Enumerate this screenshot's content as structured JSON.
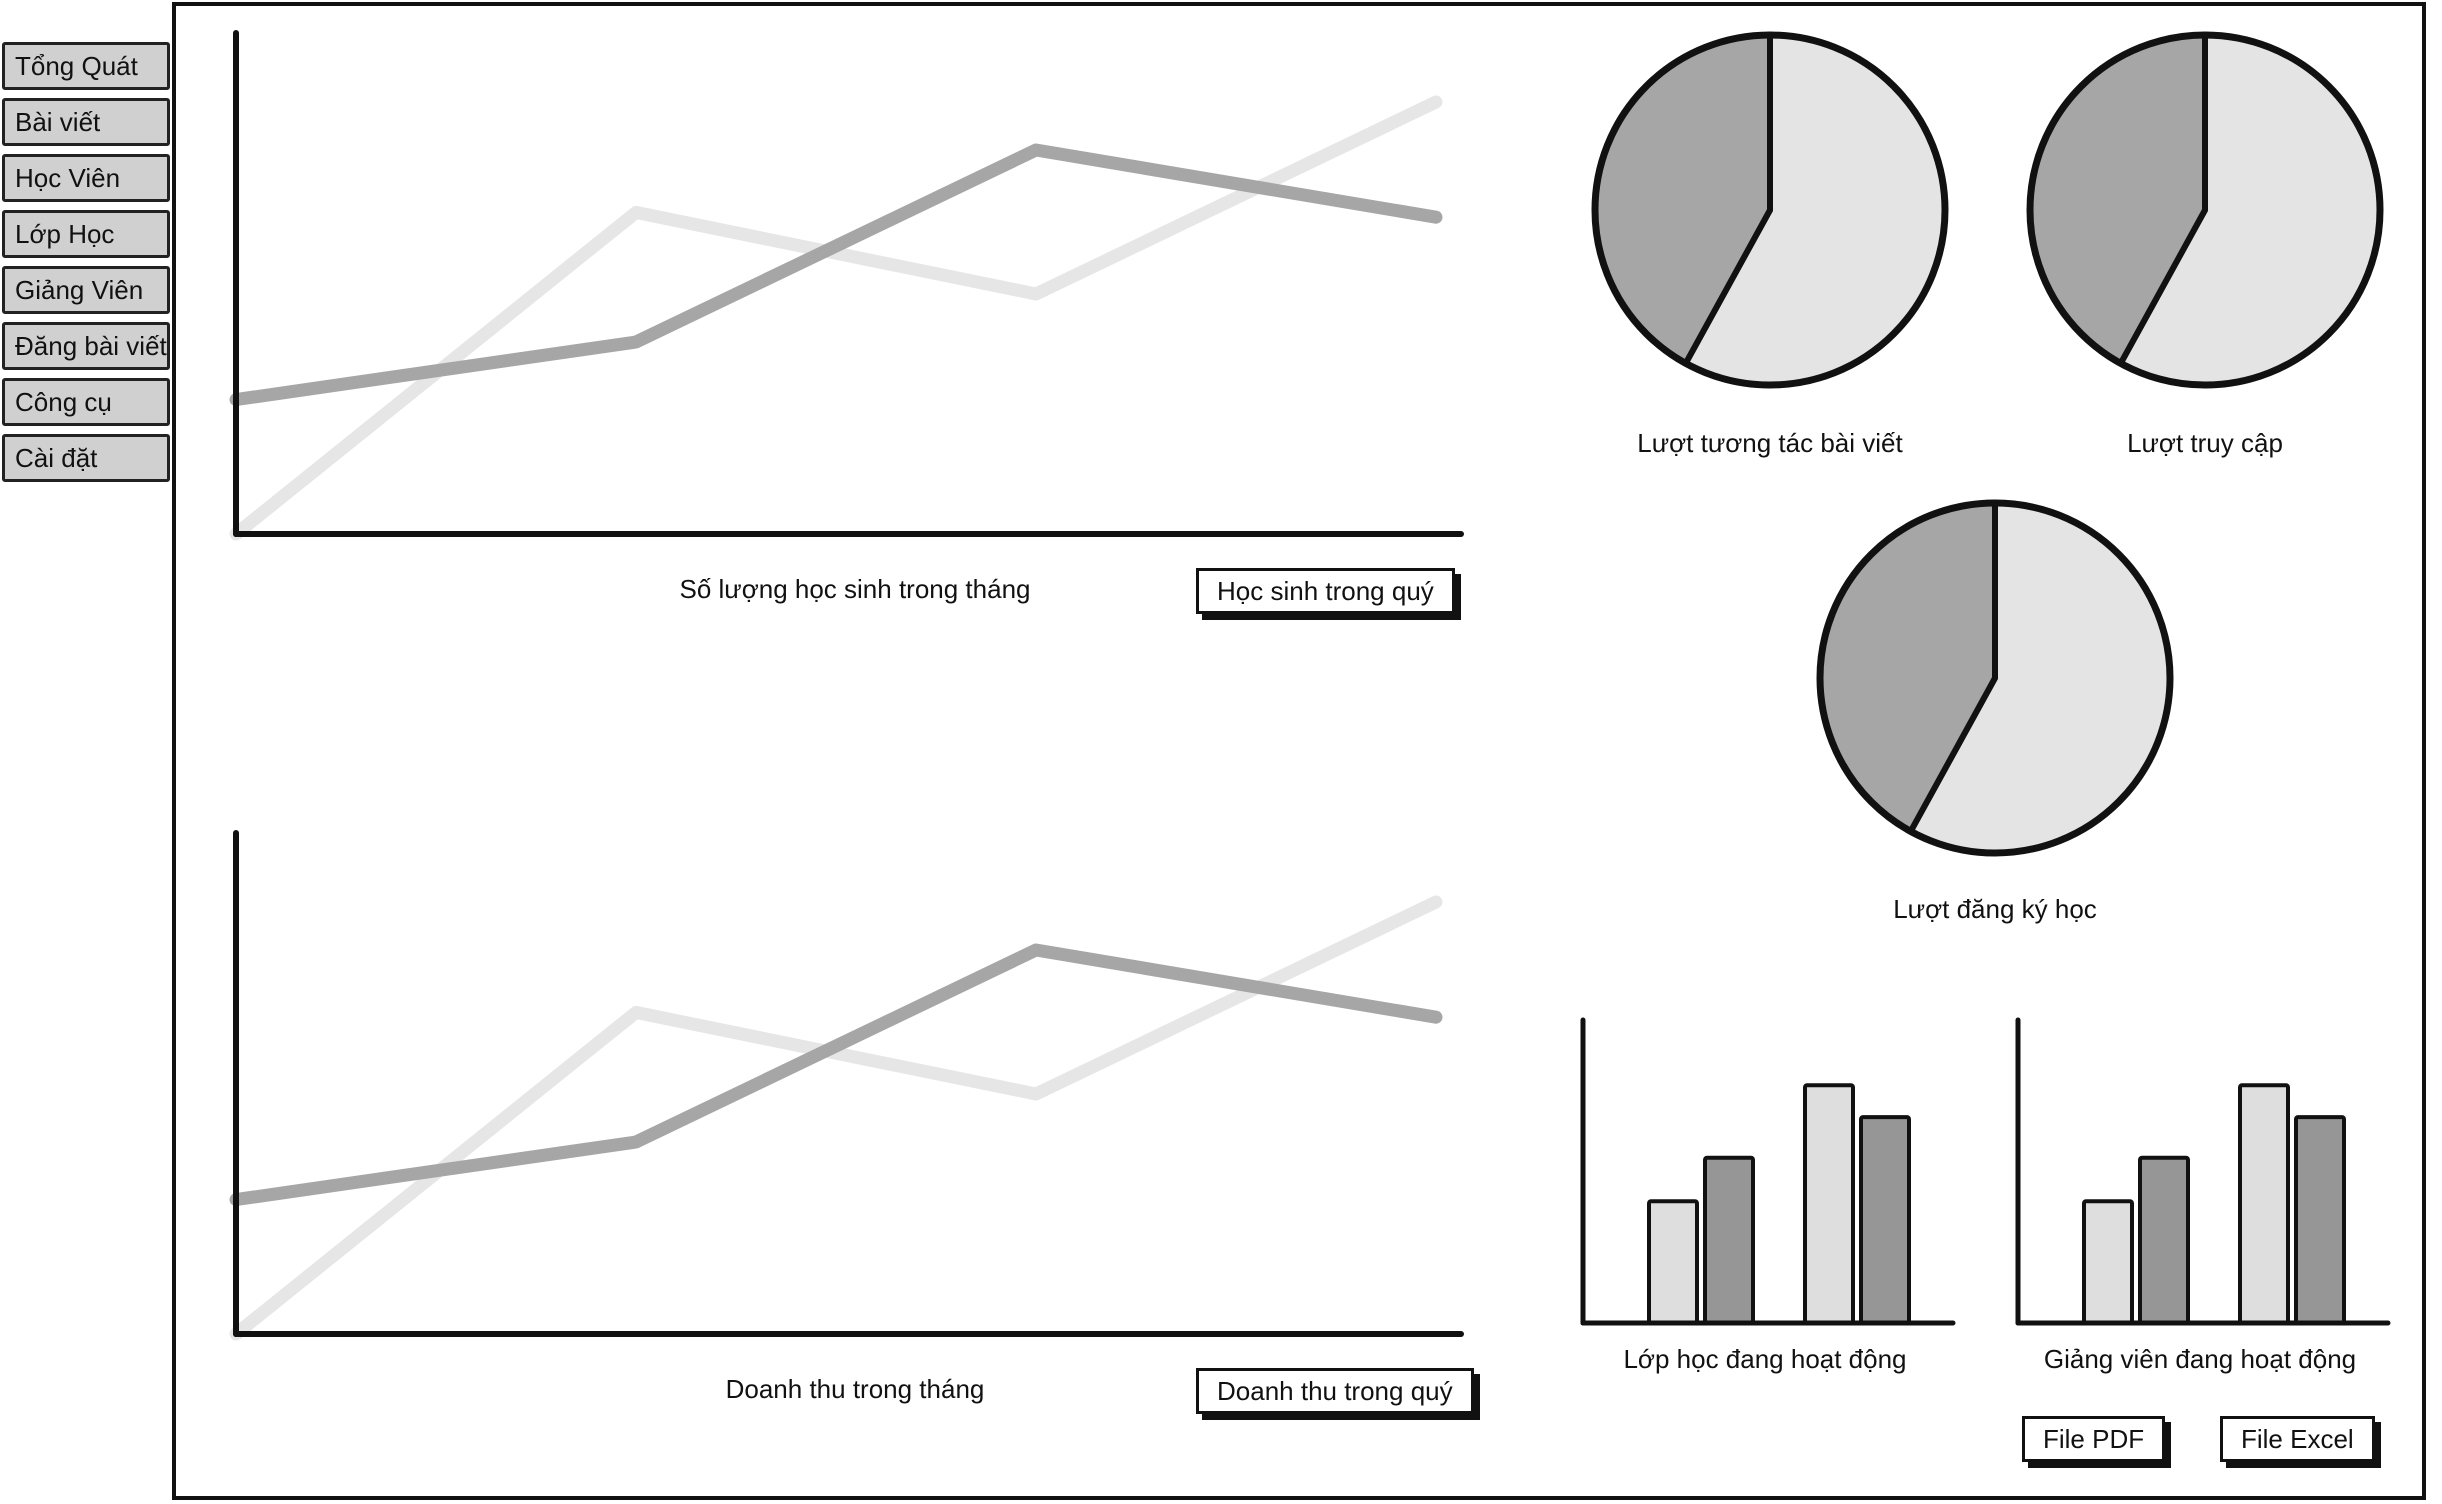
{
  "sidebar": {
    "items": [
      {
        "label": "Tổng Quát"
      },
      {
        "label": "Bài viết"
      },
      {
        "label": "Học Viên"
      },
      {
        "label": "Lớp Học"
      },
      {
        "label": "Giảng Viên"
      },
      {
        "label": "Đăng bài viết"
      },
      {
        "label": "Công cụ"
      },
      {
        "label": "Cài đặt"
      }
    ]
  },
  "colors": {
    "series_light": "#e6e6e6",
    "series_dark": "#a6a6a6",
    "bar_light": "#dedede",
    "bar_dark": "#969696",
    "pie_light": "#e4e4e4",
    "pie_dark": "#a6a6a6",
    "sidebar_tab": "#d0d0d0"
  },
  "students_chart": {
    "caption": "Số lượng học sinh trong tháng",
    "button_label": "Học sinh trong quý"
  },
  "revenue_chart": {
    "caption": "Doanh thu trong tháng",
    "button_label": "Doanh thu trong quý"
  },
  "pies": {
    "post_interactions": {
      "caption": "Lượt tương tác bài viết"
    },
    "visits": {
      "caption": "Lượt truy cập"
    },
    "registrations": {
      "caption": "Lượt đăng ký học"
    }
  },
  "bars": {
    "active_classes": {
      "caption": "Lớp học đang hoạt động"
    },
    "active_teachers": {
      "caption": "Giảng viên đang hoạt động"
    }
  },
  "export": {
    "pdf_label": "File PDF",
    "excel_label": "File Excel"
  },
  "chart_data": [
    {
      "type": "line",
      "x": [
        0,
        1,
        2,
        3
      ],
      "series": [
        {
          "values": [
            0,
            6.7,
            5.0,
            9.0
          ]
        },
        {
          "values": [
            2.8,
            4.0,
            8.0,
            6.6
          ]
        }
      ],
      "ylim": [
        0,
        10
      ],
      "xlabel": "Số lượng học sinh trong tháng",
      "ylabel": ""
    },
    {
      "type": "line",
      "x": [
        0,
        1,
        2,
        3
      ],
      "series": [
        {
          "values": [
            0,
            6.7,
            5.0,
            9.0
          ]
        },
        {
          "values": [
            2.8,
            4.0,
            8.0,
            6.6
          ]
        }
      ],
      "ylim": [
        0,
        10
      ],
      "xlabel": "Doanh thu trong tháng",
      "ylabel": ""
    },
    {
      "type": "pie",
      "title": "Lượt tương tác bài viết",
      "values": [
        58,
        42
      ]
    },
    {
      "type": "pie",
      "title": "Lượt truy cập",
      "values": [
        58,
        42
      ]
    },
    {
      "type": "pie",
      "title": "Lượt đăng ký học",
      "values": [
        58,
        42
      ]
    },
    {
      "type": "bar",
      "title": "Lớp học đang hoạt động",
      "categories": [
        "",
        ""
      ],
      "series": [
        {
          "values": [
            4.2,
            8.2
          ]
        },
        {
          "values": [
            5.7,
            7.1
          ]
        }
      ],
      "ylim": [
        0,
        10
      ]
    },
    {
      "type": "bar",
      "title": "Giảng viên đang hoạt động",
      "categories": [
        "",
        ""
      ],
      "series": [
        {
          "values": [
            4.2,
            8.2
          ]
        },
        {
          "values": [
            5.7,
            7.1
          ]
        }
      ],
      "ylim": [
        0,
        10
      ]
    }
  ]
}
